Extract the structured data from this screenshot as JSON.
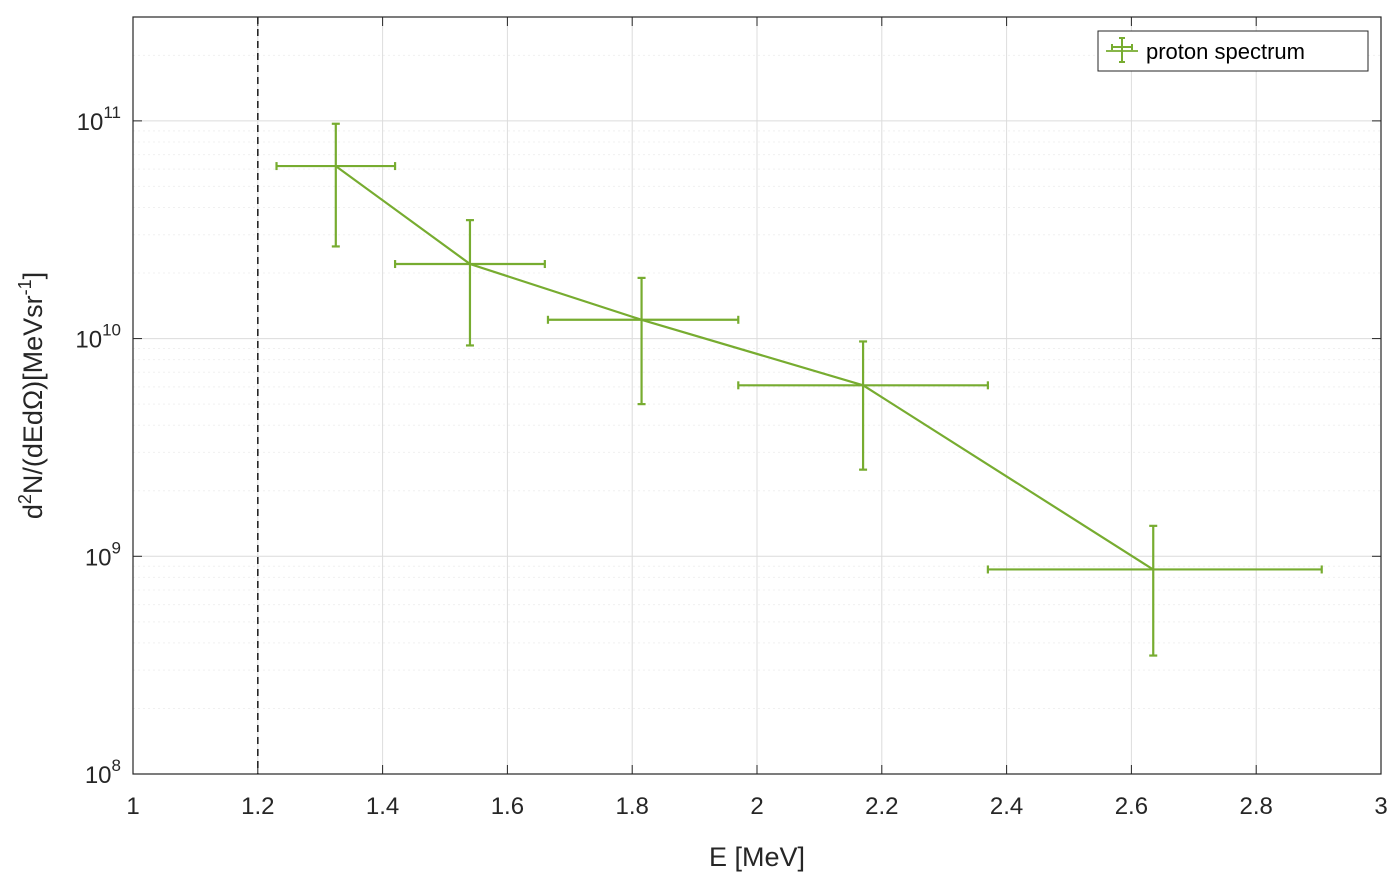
{
  "chart_data": {
    "type": "scatter",
    "x_axis": {
      "label": "E [MeV]",
      "range": [
        1,
        3
      ],
      "ticks": [
        1,
        1.2,
        1.4,
        1.6,
        1.8,
        2,
        2.2,
        2.4,
        2.6,
        2.8,
        3
      ],
      "tick_labels": [
        "1",
        "1.2",
        "1.4",
        "1.6",
        "1.8",
        "2",
        "2.2",
        "2.4",
        "2.6",
        "2.8",
        "3"
      ]
    },
    "y_axis": {
      "label_base": "d",
      "label_sup1": "2",
      "label_mid": "N/(dEdΩ)[MeVsr",
      "label_sup2": "-1",
      "label_end": "]",
      "scale": "log",
      "range": [
        100000000,
        300000000000
      ],
      "ticks": [
        {
          "value": 100000000,
          "base": "10",
          "exp": "8"
        },
        {
          "value": 1000000000,
          "base": "10",
          "exp": "9"
        },
        {
          "value": 10000000000,
          "base": "10",
          "exp": "10"
        },
        {
          "value": 100000000000,
          "base": "10",
          "exp": "11"
        }
      ]
    },
    "grid": true,
    "minor_grid": true,
    "legend_position": "top-right",
    "series": [
      {
        "name": "proton spectrum",
        "color": "#77ac30",
        "line": true,
        "points": [
          {
            "x": 1.325,
            "y": 62000000000,
            "xerr_low": 1.23,
            "xerr_high": 1.42,
            "yerr_low": 26500000000,
            "yerr_high": 97000000000
          },
          {
            "x": 1.54,
            "y": 22000000000,
            "xerr_low": 1.42,
            "xerr_high": 1.66,
            "yerr_low": 9300000000,
            "yerr_high": 35000000000
          },
          {
            "x": 1.815,
            "y": 12200000000,
            "xerr_low": 1.665,
            "xerr_high": 1.97,
            "yerr_low": 5000000000,
            "yerr_high": 19000000000
          },
          {
            "x": 2.17,
            "y": 6100000000,
            "xerr_low": 1.97,
            "xerr_high": 2.37,
            "yerr_low": 2500000000,
            "yerr_high": 9700000000
          },
          {
            "x": 2.635,
            "y": 870000000,
            "xerr_low": 2.37,
            "xerr_high": 2.905,
            "yerr_low": 350000000,
            "yerr_high": 1380000000
          }
        ]
      }
    ],
    "vertical_reference_line": {
      "x": 1.2,
      "style": "dashed",
      "color": "#262626"
    }
  }
}
